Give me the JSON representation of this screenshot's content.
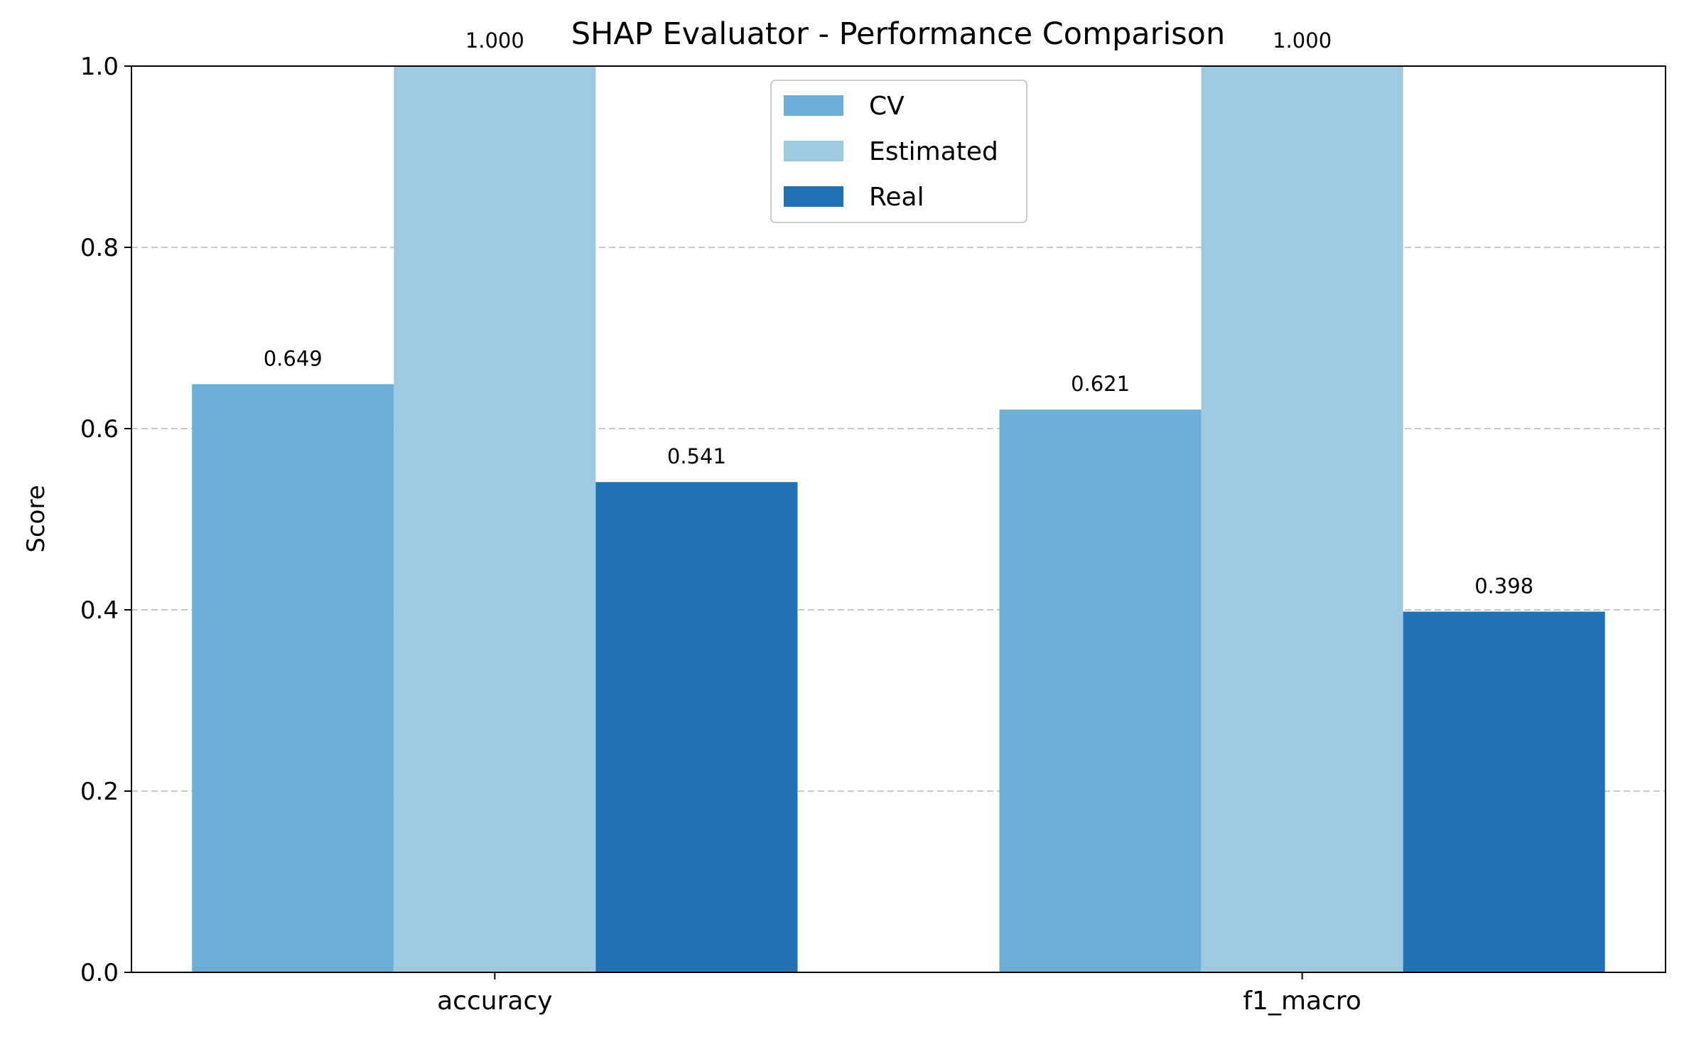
{
  "chart_data": {
    "type": "bar",
    "title": "SHAP Evaluator - Performance Comparison",
    "xlabel": "",
    "ylabel": "Score",
    "ylim": [
      0,
      1.0
    ],
    "yticks": [
      "0.0",
      "0.2",
      "0.4",
      "0.6",
      "0.8",
      "1.0"
    ],
    "grid": "y-dashed",
    "legend_position": "upper center",
    "categories": [
      "accuracy",
      "f1_macro"
    ],
    "series": [
      {
        "name": "CV",
        "color": "#6baed6",
        "values": [
          0.649,
          0.621
        ],
        "labels": [
          "0.649",
          "0.621"
        ]
      },
      {
        "name": "Estimated",
        "color": "#9ecae1",
        "values": [
          1.0,
          1.0
        ],
        "labels": [
          "1.000",
          "1.000"
        ]
      },
      {
        "name": "Real",
        "color": "#2171b5",
        "values": [
          0.541,
          0.398
        ],
        "labels": [
          "0.541",
          "0.398"
        ]
      }
    ]
  }
}
